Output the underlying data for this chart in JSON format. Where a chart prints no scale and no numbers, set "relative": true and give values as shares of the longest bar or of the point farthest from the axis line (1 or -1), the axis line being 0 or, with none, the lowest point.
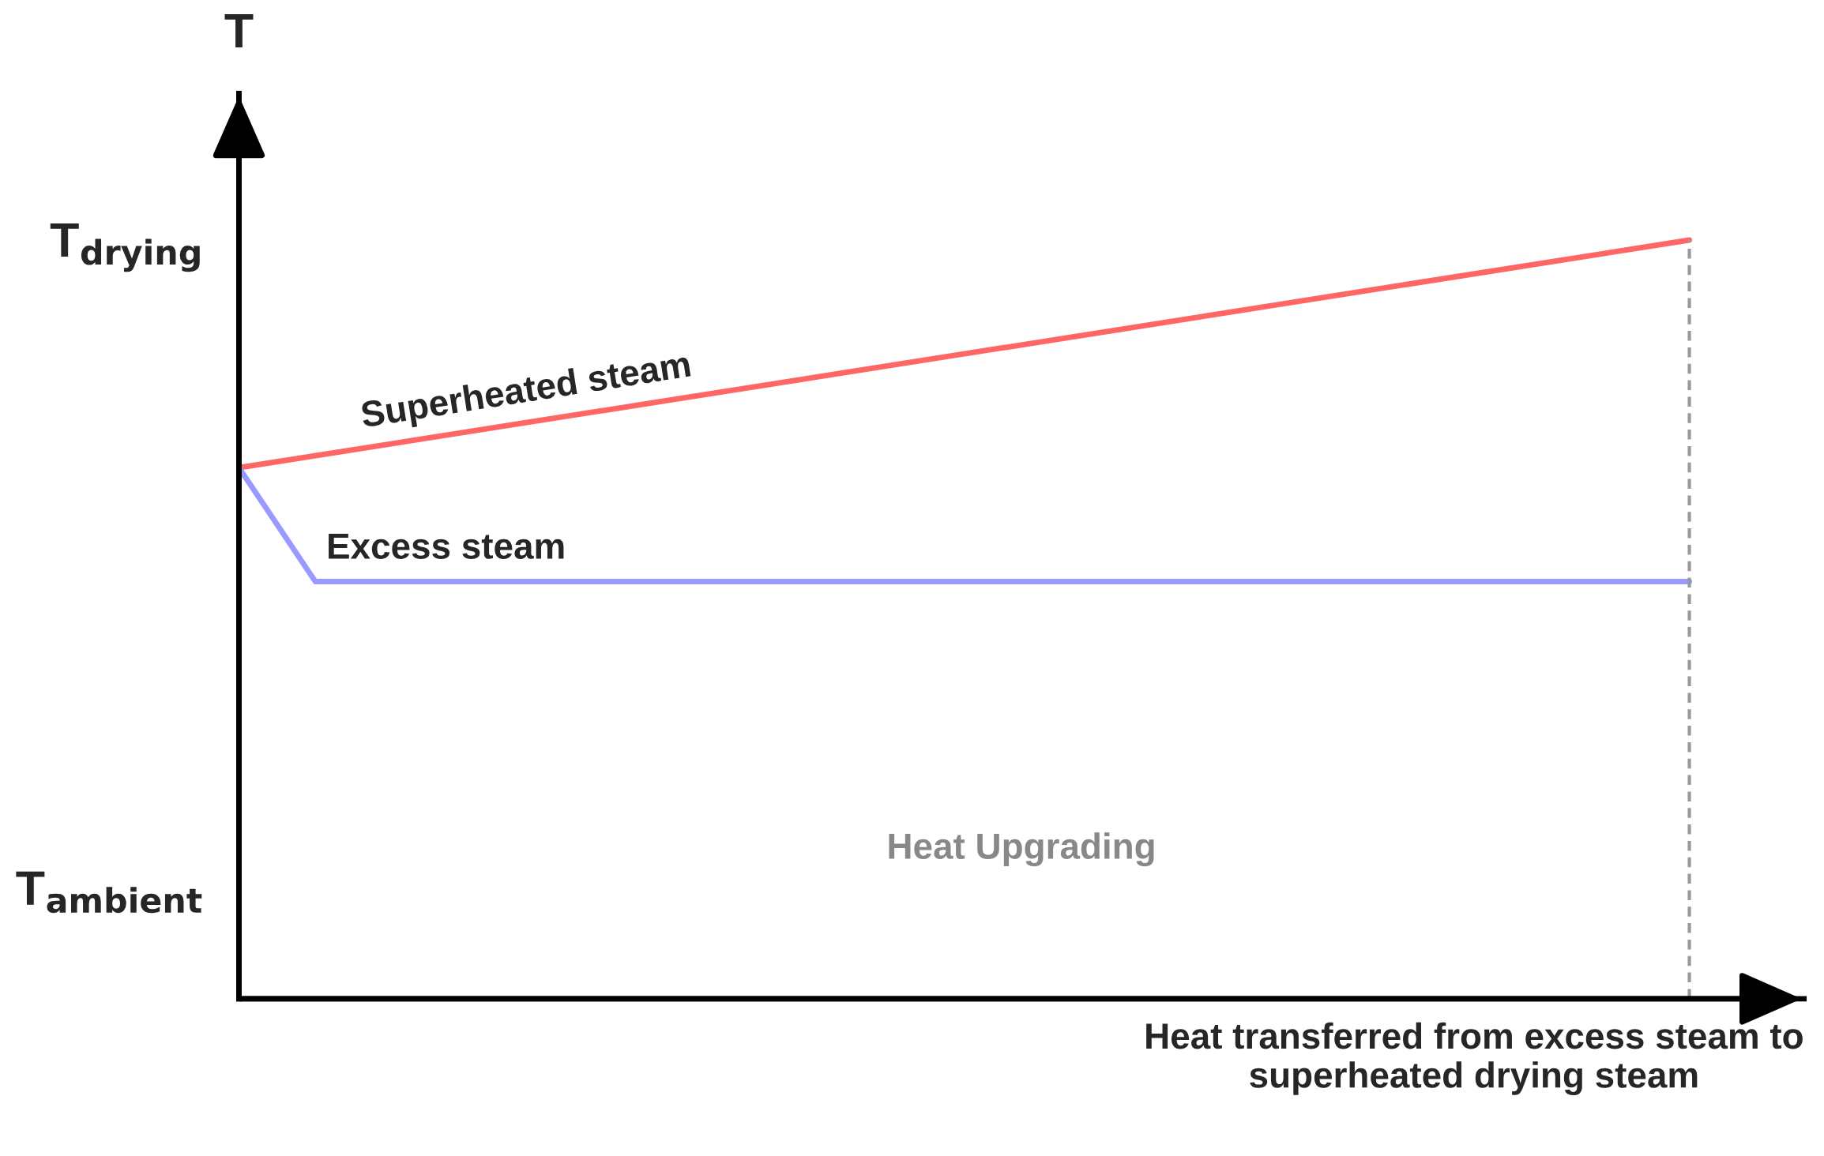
{
  "chart_data": {
    "type": "line",
    "relative": true,
    "ylabel": "T",
    "xlabel": "Heat transferred from excess steam to\nsuperheated drying steam",
    "categories": [
      null,
      null,
      null,
      null,
      null,
      null,
      null,
      null,
      null,
      null,
      null,
      null,
      null,
      null,
      null,
      null,
      null,
      null,
      null,
      null
    ],
    "series": [
      {
        "name": "Superheated steam",
        "color": "#ff6666",
        "values": [
          0.7,
          null,
          null,
          null,
          null,
          null,
          null,
          null,
          null,
          null,
          null,
          null,
          null,
          null,
          null,
          null,
          null,
          null,
          null,
          1
        ]
      },
      {
        "name": "Excess steam",
        "color": "#9999ff",
        "values": [
          0.7,
          0.55,
          null,
          null,
          null,
          null,
          null,
          null,
          null,
          null,
          null,
          null,
          null,
          null,
          null,
          null,
          null,
          null,
          null,
          0.55
        ]
      }
    ],
    "annotations": [
      "T$_{ambient}$",
      "T$_{drying}$",
      "Heat Upgrading"
    ],
    "grid": false,
    "legend": false
  }
}
